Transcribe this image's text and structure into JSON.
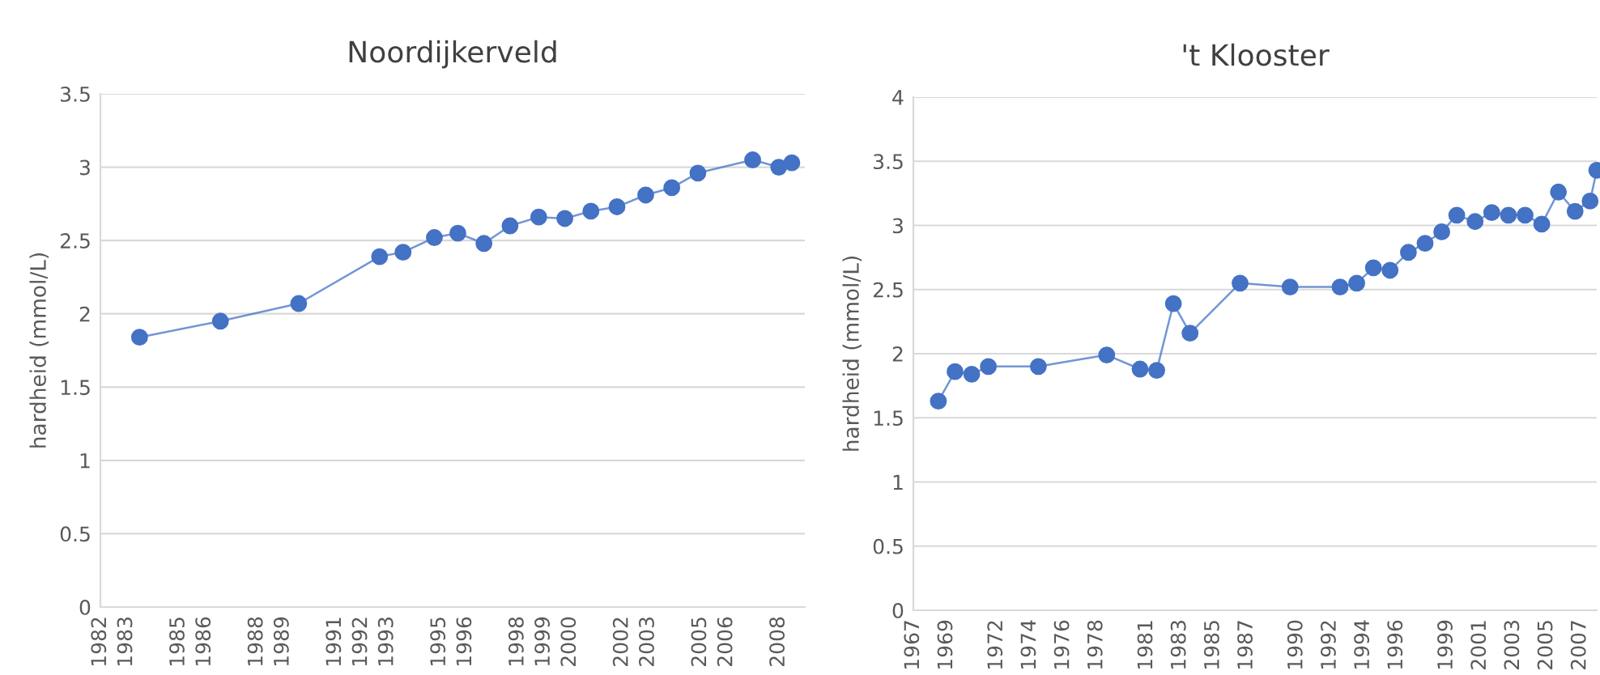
{
  "chart_data": [
    {
      "type": "line",
      "title": "Noordijkerveld",
      "ylabel": "hardheid (mmol/L)",
      "marker": "circle",
      "line_style": "solid",
      "grid": "y",
      "legend": false,
      "x": [
        1983.5,
        1986.6,
        1989.6,
        1992.7,
        1993.6,
        1994.8,
        1995.7,
        1996.7,
        1997.7,
        1998.8,
        1999.8,
        2000.8,
        2001.8,
        2002.9,
        2003.9,
        2004.9,
        2007.0,
        2008.0,
        2008.5
      ],
      "series": [
        {
          "color": "#4472c4",
          "values": [
            1.84,
            1.95,
            2.07,
            2.39,
            2.42,
            2.52,
            2.55,
            2.48,
            2.6,
            2.66,
            2.65,
            2.7,
            2.73,
            2.81,
            2.86,
            2.96,
            3.05,
            3.0,
            3.03
          ]
        }
      ],
      "xlim": [
        1982,
        2009
      ],
      "xticks": [
        1982,
        1983,
        1985,
        1986,
        1988,
        1989,
        1991,
        1992,
        1993,
        1995,
        1996,
        1998,
        1999,
        2000,
        2002,
        2003,
        2005,
        2006,
        2008
      ],
      "ylim": [
        0,
        3.5
      ],
      "yticks": [
        0,
        0.5,
        1,
        1.5,
        2,
        2.5,
        3,
        3.5
      ]
    },
    {
      "type": "line",
      "title": "'t Klooster",
      "ylabel": "hardheid (mmol/L)",
      "marker": "circle",
      "line_style": "solid",
      "grid": "y",
      "legend": false,
      "x": [
        1968.5,
        1969.5,
        1970.5,
        1971.5,
        1974.5,
        1978.6,
        1980.6,
        1981.6,
        1982.6,
        1983.6,
        1986.6,
        1989.6,
        1992.6,
        1993.6,
        1994.6,
        1995.6,
        1996.7,
        1997.7,
        1998.7,
        1999.6,
        2000.7,
        2001.7,
        2002.7,
        2003.7,
        2004.7,
        2005.7,
        2006.7,
        2007.6,
        2008.0
      ],
      "series": [
        {
          "color": "#4472c4",
          "values": [
            1.63,
            1.86,
            1.84,
            1.9,
            1.9,
            1.99,
            1.88,
            1.87,
            2.39,
            2.16,
            2.55,
            2.52,
            2.52,
            2.55,
            2.67,
            2.65,
            2.79,
            2.86,
            2.95,
            3.08,
            3.03,
            3.1,
            3.08,
            3.08,
            3.01,
            3.26,
            3.11,
            3.19,
            3.43
          ]
        }
      ],
      "xlim": [
        1967,
        2008
      ],
      "xticks": [
        1967,
        1969,
        1972,
        1974,
        1976,
        1978,
        1981,
        1983,
        1985,
        1987,
        1990,
        1992,
        1994,
        1996,
        1999,
        2001,
        2003,
        2005,
        2007
      ],
      "ylim": [
        0,
        4
      ],
      "yticks": [
        0,
        0.5,
        1,
        1.5,
        2,
        2.5,
        3,
        3.5,
        4
      ]
    }
  ]
}
